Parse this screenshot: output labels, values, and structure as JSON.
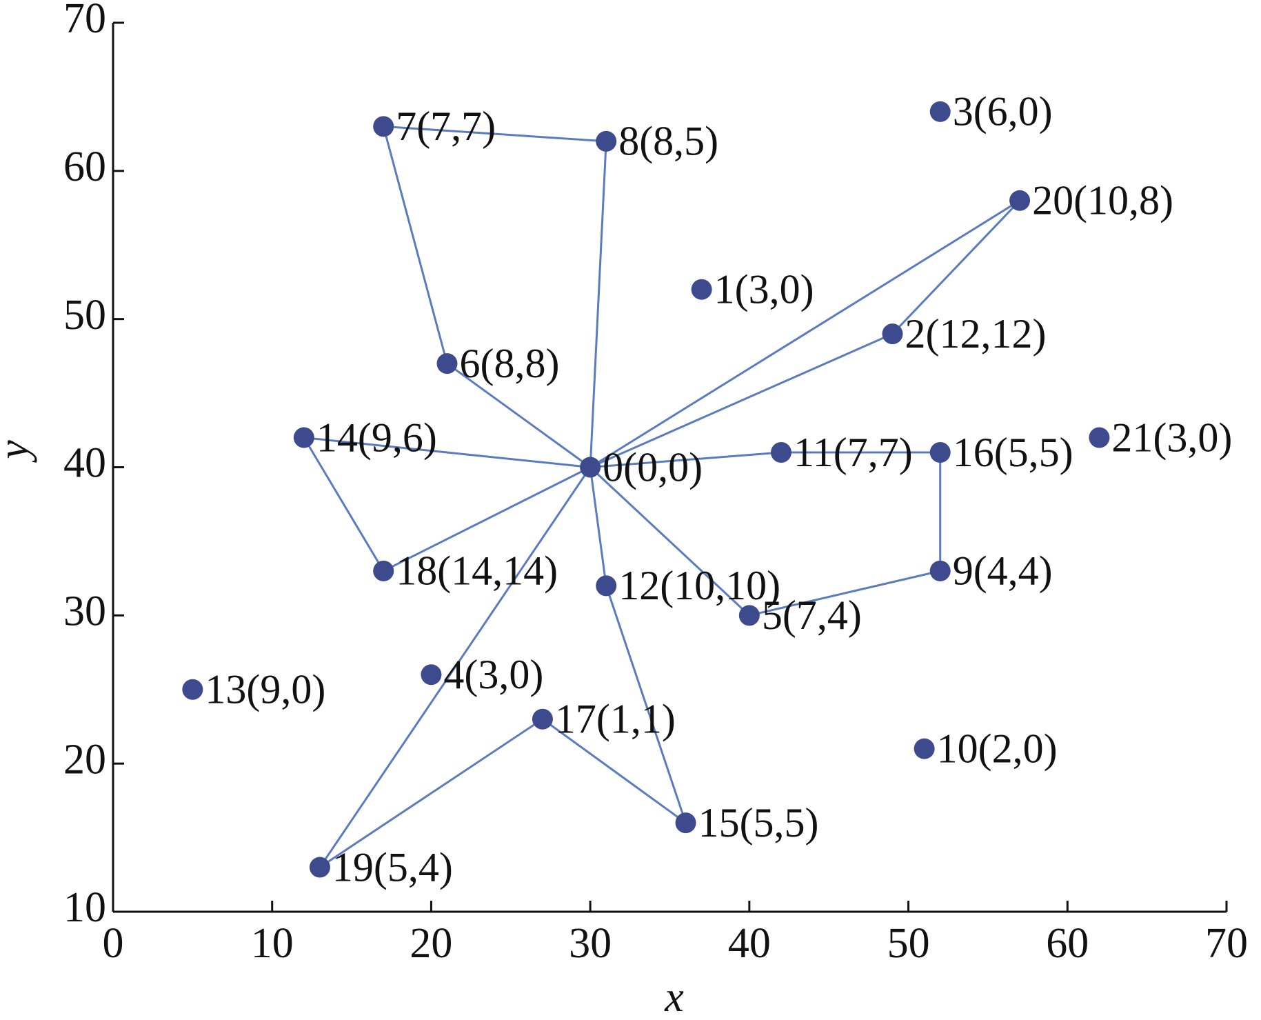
{
  "chart_data": {
    "type": "scatter",
    "xlabel": "x",
    "ylabel": "y",
    "xlim": [
      0,
      70
    ],
    "ylim": [
      10,
      70
    ],
    "xticks": [
      0,
      10,
      20,
      30,
      40,
      50,
      60,
      70
    ],
    "yticks": [
      10,
      20,
      30,
      40,
      50,
      60,
      70
    ],
    "points": {
      "color": "#3d4a8e",
      "x": [
        30,
        37,
        49,
        52,
        20,
        40,
        21,
        17,
        31,
        52,
        51,
        42,
        31,
        5,
        12,
        36,
        52,
        27,
        17,
        13,
        57,
        62
      ],
      "y": [
        40,
        52,
        49,
        64,
        26,
        30,
        47,
        63,
        62,
        33,
        21,
        41,
        32,
        25,
        42,
        16,
        41,
        23,
        33,
        13,
        58,
        42
      ],
      "labels": [
        "0(0,0)",
        "1(3,0)",
        "2(12,12)",
        "3(6,0)",
        "4(3,0)",
        "5(7,4)",
        "6(8,8)",
        "7(7,7)",
        "8(8,5)",
        "9(4,4)",
        "10(2,0)",
        "11(7,7)",
        "12(10,10)",
        "13(9,0)",
        "14(9,6)",
        "15(5,5)",
        "16(5,5)",
        "17(1,1)",
        "18(14,14)",
        "19(5,4)",
        "20(10,8)",
        "21(3,0)"
      ]
    },
    "routes": [
      {
        "color": "#5b7bbf",
        "x": [
          30,
          31,
          17,
          21,
          30
        ],
        "y": [
          40,
          62,
          63,
          47,
          40
        ]
      },
      {
        "color": "#5b7bbf",
        "x": [
          30,
          57,
          49,
          30
        ],
        "y": [
          40,
          58,
          49,
          40
        ]
      },
      {
        "color": "#5b7bbf",
        "x": [
          30,
          42,
          52,
          52,
          40,
          30
        ],
        "y": [
          40,
          41,
          41,
          33,
          30,
          40
        ]
      },
      {
        "color": "#5b7bbf",
        "x": [
          30,
          12,
          17,
          30
        ],
        "y": [
          40,
          42,
          33,
          40
        ]
      },
      {
        "color": "#5b7bbf",
        "x": [
          30,
          31,
          36,
          27,
          13,
          30
        ],
        "y": [
          40,
          32,
          16,
          23,
          13,
          40
        ]
      }
    ]
  }
}
